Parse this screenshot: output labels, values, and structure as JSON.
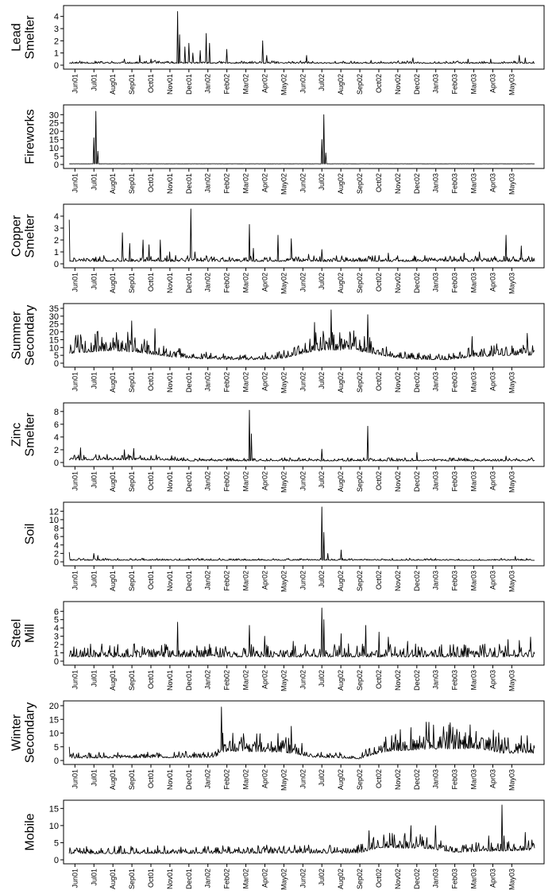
{
  "chart_data": [
    {
      "type": "line",
      "ylabel": [
        "Lead",
        "Smelter"
      ],
      "yticks": [
        0,
        1,
        2,
        3,
        4
      ],
      "ylim": [
        0,
        4.5
      ],
      "xticks": [
        "Jun01",
        "Jul01",
        "Aug01",
        "Sep01",
        "Oct01",
        "Nov01",
        "Dec01",
        "Jan02",
        "Feb02",
        "Mar02",
        "Apr02",
        "May02",
        "Jun02",
        "Jul02",
        "Aug02",
        "Sep02",
        "Oct02",
        "Nov02",
        "Dec02",
        "Jan03",
        "Feb03",
        "Mar03",
        "Apr03",
        "May03"
      ],
      "x_range_months": [
        -0.6,
        24.7
      ],
      "baseline": 0.15,
      "noise": 0.2,
      "spikes": [
        [
          2.6,
          0.5
        ],
        [
          3.4,
          0.8
        ],
        [
          4.0,
          0.5
        ],
        [
          4.2,
          0.4
        ],
        [
          5.4,
          4.4
        ],
        [
          5.5,
          2.5
        ],
        [
          5.8,
          1.5
        ],
        [
          6.0,
          1.8
        ],
        [
          6.2,
          1.0
        ],
        [
          6.6,
          1.2
        ],
        [
          6.9,
          2.6
        ],
        [
          7.1,
          1.8
        ],
        [
          8.0,
          1.3
        ],
        [
          9.9,
          2.0
        ],
        [
          10.1,
          0.8
        ],
        [
          12.2,
          0.8
        ],
        [
          13.3,
          0.2
        ],
        [
          14.7,
          0.3
        ],
        [
          15.6,
          0.4
        ],
        [
          17.8,
          0.6
        ],
        [
          20.7,
          0.5
        ],
        [
          21.9,
          0.5
        ],
        [
          23.4,
          0.8
        ],
        [
          23.7,
          0.6
        ],
        [
          22.6,
          0.3
        ]
      ],
      "seed": 11
    },
    {
      "type": "line",
      "ylabel": [
        "Fireworks"
      ],
      "yticks": [
        0,
        5,
        10,
        15,
        20,
        25,
        30
      ],
      "ylim": [
        0,
        33
      ],
      "xticks": [
        "Jun01",
        "Jul01",
        "Aug01",
        "Sep01",
        "Oct01",
        "Nov01",
        "Dec01",
        "Jan02",
        "Feb02",
        "Mar02",
        "Apr02",
        "May02",
        "Jun02",
        "Jul02",
        "Aug02",
        "Sep02",
        "Oct02",
        "Nov02",
        "Dec02",
        "Jan03",
        "Feb03",
        "Mar03",
        "Apr03",
        "May03"
      ],
      "x_range_months": [
        -0.6,
        24.7
      ],
      "baseline": 0.4,
      "noise": 0.05,
      "spikes": [
        [
          1.0,
          16
        ],
        [
          1.1,
          32
        ],
        [
          1.2,
          8
        ],
        [
          13.0,
          15
        ],
        [
          13.1,
          30
        ],
        [
          13.2,
          7
        ]
      ],
      "seed": 3
    },
    {
      "type": "line",
      "ylabel": [
        "Copper",
        "Smelter"
      ],
      "yticks": [
        0,
        1,
        2,
        3,
        4
      ],
      "ylim": [
        0,
        4.6
      ],
      "xticks": [
        "Jun01",
        "Jul01",
        "Aug01",
        "Sep01",
        "Oct01",
        "Nov01",
        "Dec01",
        "Jan02",
        "Feb02",
        "Mar02",
        "Apr02",
        "May02",
        "Jun02",
        "Jul02",
        "Aug02",
        "Sep02",
        "Oct02",
        "Nov02",
        "Dec02",
        "Jan03",
        "Feb03",
        "Mar03",
        "Apr03",
        "May03"
      ],
      "x_range_months": [
        -0.6,
        24.7
      ],
      "baseline": 0.2,
      "noise": 0.5,
      "spikes": [
        [
          -0.5,
          3.7
        ],
        [
          -0.4,
          2.3
        ],
        [
          2.5,
          2.6
        ],
        [
          2.9,
          1.7
        ],
        [
          3.6,
          2.0
        ],
        [
          3.9,
          1.6
        ],
        [
          4.5,
          2.0
        ],
        [
          5.0,
          1.0
        ],
        [
          6.1,
          4.6
        ],
        [
          6.3,
          1.0
        ],
        [
          7.2,
          0.6
        ],
        [
          9.2,
          3.3
        ],
        [
          9.4,
          1.3
        ],
        [
          10.7,
          2.4
        ],
        [
          11.4,
          2.1
        ],
        [
          12.3,
          0.8
        ],
        [
          13.0,
          1.2
        ],
        [
          14.5,
          0.4
        ],
        [
          16.5,
          0.9
        ],
        [
          19.5,
          0.6
        ],
        [
          20.5,
          0.9
        ],
        [
          21.3,
          1.0
        ],
        [
          22.7,
          2.4
        ],
        [
          23.5,
          1.5
        ]
      ],
      "seed": 21
    },
    {
      "type": "line",
      "ylabel": [
        "Summer",
        "Secondary"
      ],
      "yticks": [
        0,
        5,
        10,
        15,
        20,
        25,
        30,
        35
      ],
      "ylim": [
        0,
        35
      ],
      "xticks": [
        "Jun01",
        "Jul01",
        "Aug01",
        "Sep01",
        "Oct01",
        "Nov01",
        "Dec01",
        "Jan02",
        "Feb02",
        "Mar02",
        "Apr02",
        "May02",
        "Jun02",
        "Jul02",
        "Aug02",
        "Sep02",
        "Oct02",
        "Nov02",
        "Dec02",
        "Jan03",
        "Feb03",
        "Mar03",
        "Apr03",
        "May03"
      ],
      "x_range_months": [
        -0.6,
        24.7
      ],
      "baseline": 5,
      "noise": 9,
      "envelope": [
        [
          -0.6,
          1.2
        ],
        [
          2.0,
          1.6
        ],
        [
          3.5,
          1.3
        ],
        [
          5.0,
          0.8
        ],
        [
          7.0,
          0.5
        ],
        [
          9.0,
          0.4
        ],
        [
          11.0,
          0.6
        ],
        [
          12.3,
          1.4
        ],
        [
          13.5,
          1.7
        ],
        [
          15.0,
          1.5
        ],
        [
          16.5,
          0.8
        ],
        [
          18.0,
          0.5
        ],
        [
          19.5,
          0.4
        ],
        [
          21.0,
          0.8
        ],
        [
          23.0,
          1.0
        ],
        [
          24.7,
          1.0
        ]
      ],
      "spikes": [
        [
          3.0,
          27
        ],
        [
          4.2,
          22
        ],
        [
          12.6,
          26
        ],
        [
          13.5,
          34
        ],
        [
          15.4,
          31
        ],
        [
          20.9,
          17
        ],
        [
          23.8,
          19
        ]
      ],
      "seed": 5
    },
    {
      "type": "line",
      "ylabel": [
        "Zinc",
        "Smelter"
      ],
      "yticks": [
        0,
        2,
        4,
        6,
        8
      ],
      "ylim": [
        0,
        8.6
      ],
      "xticks": [
        "Jun01",
        "Jul01",
        "Aug01",
        "Sep01",
        "Oct01",
        "Nov01",
        "Dec01",
        "Jan02",
        "Feb02",
        "Mar02",
        "Apr02",
        "May02",
        "Jun02",
        "Jul02",
        "Aug02",
        "Sep02",
        "Oct02",
        "Nov02",
        "Dec02",
        "Jan03",
        "Feb03",
        "Mar03",
        "Apr03",
        "May03"
      ],
      "x_range_months": [
        -0.6,
        24.7
      ],
      "baseline": 0.4,
      "noise": 0.9,
      "envelope": [
        [
          -0.6,
          1.0
        ],
        [
          4.5,
          1.0
        ],
        [
          6.0,
          0.6
        ],
        [
          24.7,
          0.6
        ]
      ],
      "spikes": [
        [
          0.3,
          2.3
        ],
        [
          2.6,
          2.0
        ],
        [
          3.1,
          2.2
        ],
        [
          9.2,
          8.2
        ],
        [
          9.3,
          4.5
        ],
        [
          13.0,
          2.1
        ],
        [
          15.4,
          5.7
        ],
        [
          18.0,
          1.6
        ],
        [
          22.7,
          1.0
        ]
      ],
      "seed": 8
    },
    {
      "type": "line",
      "ylabel": [
        "Soil"
      ],
      "yticks": [
        0,
        2,
        4,
        6,
        8,
        10,
        12
      ],
      "ylim": [
        0,
        13
      ],
      "xticks": [
        "Jun01",
        "Jul01",
        "Aug01",
        "Sep01",
        "Oct01",
        "Nov01",
        "Dec01",
        "Jan02",
        "Feb02",
        "Mar02",
        "Apr02",
        "May02",
        "Jun02",
        "Jul02",
        "Aug02",
        "Sep02",
        "Oct02",
        "Nov02",
        "Dec02",
        "Jan03",
        "Feb03",
        "Mar03",
        "Apr03",
        "May03"
      ],
      "x_range_months": [
        -0.6,
        24.7
      ],
      "baseline": 0.35,
      "noise": 0.5,
      "spikes": [
        [
          -0.3,
          2.3
        ],
        [
          1.0,
          2.0
        ],
        [
          1.2,
          1.5
        ],
        [
          13.0,
          13
        ],
        [
          13.1,
          7
        ],
        [
          13.3,
          2.0
        ],
        [
          14.0,
          2.8
        ],
        [
          23.2,
          1.3
        ]
      ],
      "seed": 13
    },
    {
      "type": "line",
      "ylabel": [
        "Steel",
        "Mill"
      ],
      "yticks": [
        0,
        1,
        2,
        3,
        4,
        5,
        6
      ],
      "ylim": [
        0,
        6.6
      ],
      "xticks": [
        "Jun01",
        "Jul01",
        "Aug01",
        "Sep01",
        "Oct01",
        "Nov01",
        "Dec01",
        "Jan02",
        "Feb02",
        "Mar02",
        "Apr02",
        "May02",
        "Jun02",
        "Jul02",
        "Aug02",
        "Sep02",
        "Oct02",
        "Nov02",
        "Dec02",
        "Jan03",
        "Feb03",
        "Mar03",
        "Apr03",
        "May03"
      ],
      "x_range_months": [
        -0.6,
        24.7
      ],
      "baseline": 0.5,
      "noise": 1.6,
      "spikes": [
        [
          5.4,
          4.7
        ],
        [
          9.2,
          4.3
        ],
        [
          10.0,
          3.0
        ],
        [
          11.5,
          2.4
        ],
        [
          13.0,
          6.4
        ],
        [
          13.1,
          5.0
        ],
        [
          14.0,
          3.3
        ],
        [
          15.3,
          4.3
        ],
        [
          16.0,
          3.5
        ],
        [
          16.5,
          2.9
        ],
        [
          17.5,
          2.4
        ],
        [
          22.8,
          2.6
        ],
        [
          23.4,
          2.5
        ],
        [
          24.0,
          2.9
        ]
      ],
      "seed": 17
    },
    {
      "type": "line",
      "ylabel": [
        "Winter",
        "Secondary"
      ],
      "yticks": [
        0,
        5,
        10,
        15,
        20
      ],
      "ylim": [
        0,
        20
      ],
      "xticks": [
        "Jun01",
        "Jul01",
        "Aug01",
        "Sep01",
        "Oct01",
        "Nov01",
        "Dec01",
        "Jan02",
        "Feb02",
        "Mar02",
        "Apr02",
        "May02",
        "Jun02",
        "Jul02",
        "Aug02",
        "Sep02",
        "Oct02",
        "Nov02",
        "Dec02",
        "Jan03",
        "Feb03",
        "Mar03",
        "Apr03",
        "May03"
      ],
      "x_range_months": [
        -0.6,
        24.7
      ],
      "baseline": 1.2,
      "noise": 3,
      "envelope": [
        [
          -0.6,
          0.7
        ],
        [
          7.3,
          0.9
        ],
        [
          8.0,
          2.8
        ],
        [
          11.0,
          2.5
        ],
        [
          12.5,
          1.0
        ],
        [
          15.0,
          0.5
        ],
        [
          15.6,
          1.6
        ],
        [
          16.5,
          2.8
        ],
        [
          19.0,
          3.5
        ],
        [
          21.3,
          3.5
        ],
        [
          22.5,
          2.2
        ],
        [
          24.7,
          2.2
        ]
      ],
      "spikes": [
        [
          -0.4,
          5.0
        ],
        [
          7.7,
          19.5
        ],
        [
          7.8,
          10
        ],
        [
          11.4,
          12.5
        ],
        [
          17.7,
          12
        ],
        [
          18.5,
          14
        ],
        [
          19.7,
          13
        ],
        [
          20.8,
          13
        ]
      ],
      "seed": 29
    },
    {
      "type": "line",
      "ylabel": [
        "Mobile"
      ],
      "yticks": [
        0,
        5,
        10,
        15
      ],
      "ylim": [
        0,
        16
      ],
      "xticks": [
        "Jun01",
        "Jul01",
        "Aug01",
        "Sep01",
        "Oct01",
        "Nov01",
        "Dec01",
        "Jan02",
        "Feb02",
        "Mar02",
        "Apr02",
        "May02",
        "Jun02",
        "Jul02",
        "Aug02",
        "Sep02",
        "Oct02",
        "Nov02",
        "Dec02",
        "Jan03",
        "Feb03",
        "Mar03",
        "Apr03",
        "May03"
      ],
      "x_range_months": [
        -0.6,
        24.7
      ],
      "baseline": 2.2,
      "noise": 2.8,
      "envelope": [
        [
          -0.6,
          0.8
        ],
        [
          15.0,
          0.9
        ],
        [
          16.0,
          1.6
        ],
        [
          18.5,
          1.5
        ],
        [
          20.0,
          1.0
        ],
        [
          24.7,
          1.3
        ]
      ],
      "spikes": [
        [
          22.5,
          16
        ],
        [
          22.6,
          7
        ],
        [
          15.5,
          8.5
        ],
        [
          17.7,
          10
        ],
        [
          19.0,
          10
        ],
        [
          21.8,
          7
        ],
        [
          23.7,
          8
        ]
      ],
      "seed": 41
    }
  ]
}
